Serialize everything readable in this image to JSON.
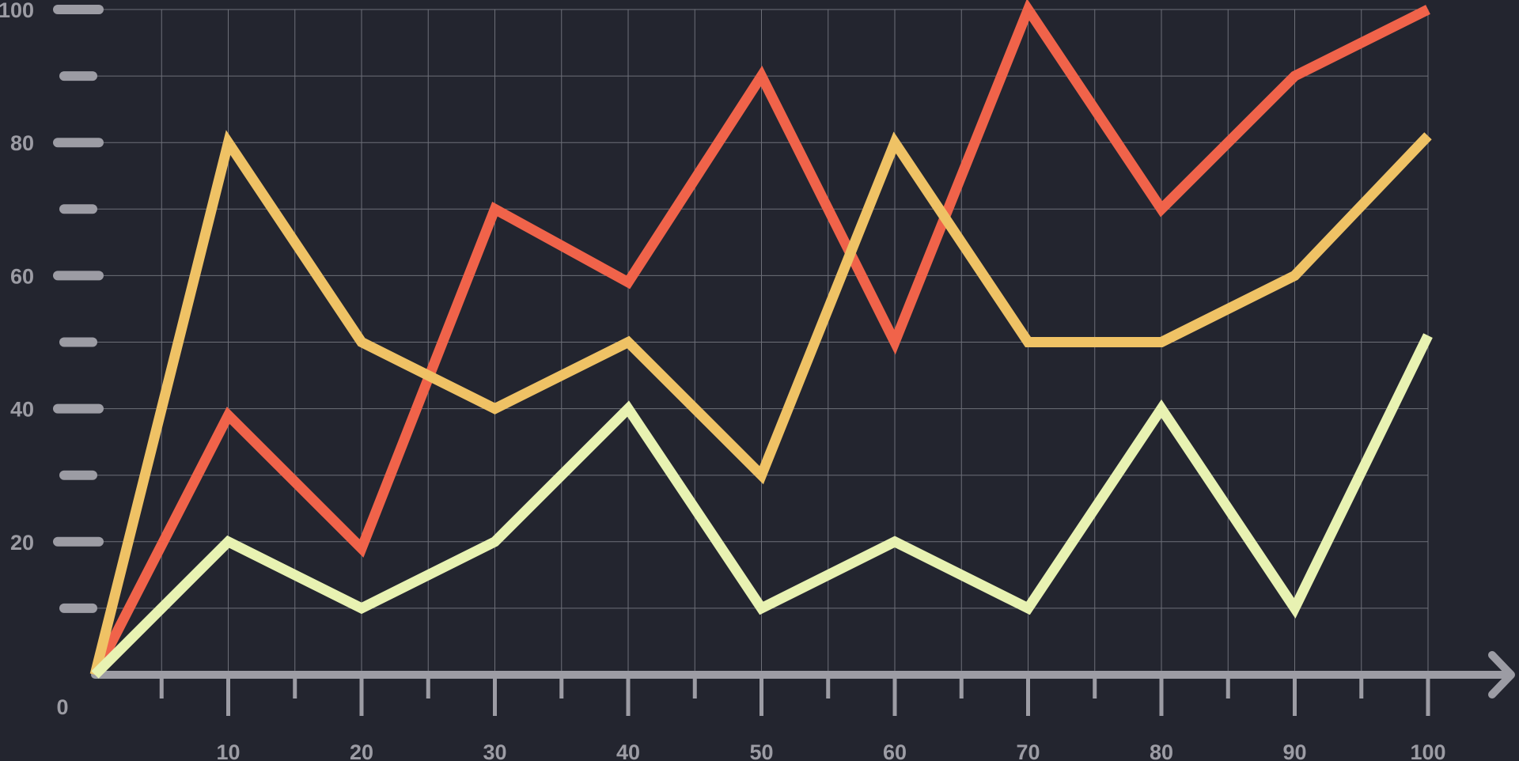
{
  "chart_data": {
    "type": "line",
    "xlim": [
      0,
      100
    ],
    "ylim": [
      0,
      100
    ],
    "grid": true,
    "x_ticks": [
      10,
      20,
      30,
      40,
      50,
      60,
      70,
      80,
      90,
      100
    ],
    "x_tick_labels": [
      "10",
      "20",
      "30",
      "40",
      "50",
      "60",
      "70",
      "80",
      "90",
      "100"
    ],
    "y_ticks": [
      20,
      40,
      60,
      80,
      100
    ],
    "y_tick_labels": [
      "20",
      "40",
      "60",
      "80",
      "100"
    ],
    "origin_label": "0",
    "x": [
      0,
      10,
      20,
      30,
      40,
      50,
      60,
      70,
      80,
      90,
      100
    ],
    "series": [
      {
        "color": "#f0634a",
        "values": [
          0,
          39,
          19,
          70,
          59,
          90,
          50,
          100,
          70,
          90,
          100
        ]
      },
      {
        "color": "#efc265",
        "values": [
          0,
          80,
          50,
          40,
          50,
          30,
          80,
          50,
          50,
          60,
          81
        ]
      },
      {
        "color": "#e8f2b2",
        "values": [
          0,
          20,
          10,
          20,
          40,
          10,
          20,
          10,
          40,
          10,
          51
        ]
      }
    ],
    "colors": {
      "background": "#23252f",
      "grid": "#6d6f78",
      "axis": "#9c9ca4",
      "tick_label": "#9c9ca4"
    }
  }
}
